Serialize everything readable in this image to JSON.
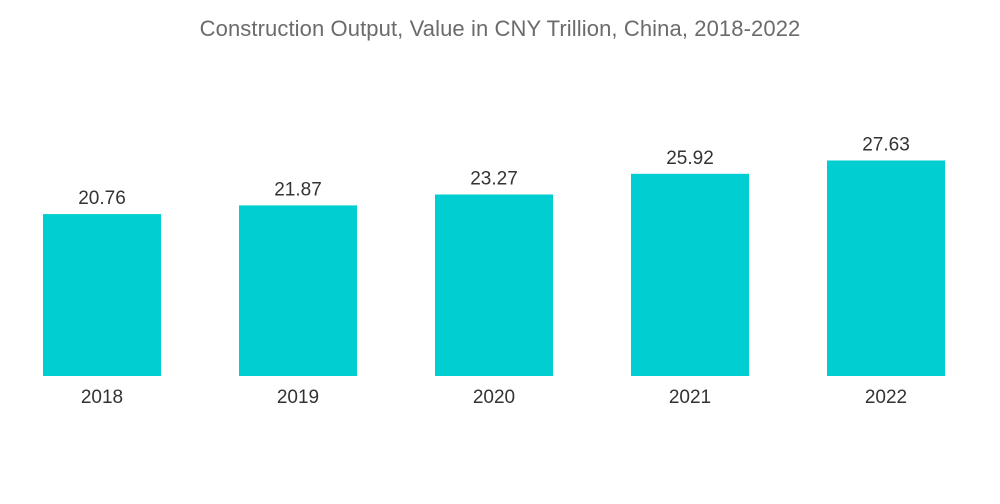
{
  "chart_data": {
    "type": "bar",
    "title": "Construction Output, Value in CNY Trillion, China, 2018-2022",
    "categories": [
      "2018",
      "2019",
      "2020",
      "2021",
      "2022"
    ],
    "values": [
      20.76,
      21.87,
      23.27,
      25.92,
      27.63
    ],
    "data_labels": [
      "20.76",
      "21.87",
      "23.27",
      "25.92",
      "27.63"
    ],
    "xlabel": "",
    "ylabel": "",
    "grid": false,
    "legend": "none",
    "bar_color": "#00ced1",
    "label_color": "#333333",
    "title_color": "#6b6b6b"
  }
}
